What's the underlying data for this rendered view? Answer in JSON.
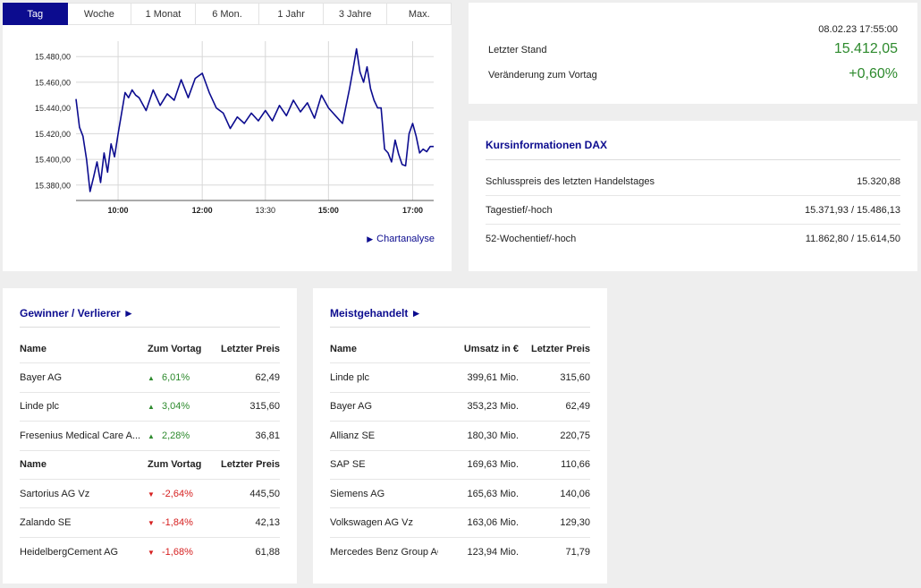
{
  "tabs": [
    "Tag",
    "Woche",
    "1 Monat",
    "6 Mon.",
    "1 Jahr",
    "3 Jahre",
    "Max."
  ],
  "active_tab": 0,
  "chart_link": "Chartanalyse",
  "chart_data": {
    "type": "line",
    "title": "",
    "xlabel": "",
    "ylabel": "",
    "x_ticks": [
      "10:00",
      "12:00",
      "13:30",
      "15:00",
      "17:00"
    ],
    "y_ticks": [
      "15.380,00",
      "15.400,00",
      "15.420,00",
      "15.440,00",
      "15.460,00",
      "15.480,00"
    ],
    "ylim": [
      15368,
      15492
    ],
    "xlim": [
      "09:00",
      "17:30"
    ],
    "line_color": "#0c0c8f",
    "grid": true,
    "series": [
      {
        "name": "",
        "x": [
          "09:00",
          "09:05",
          "09:10",
          "09:15",
          "09:20",
          "09:25",
          "09:30",
          "09:35",
          "09:40",
          "09:45",
          "09:50",
          "09:55",
          "10:00",
          "10:05",
          "10:10",
          "10:15",
          "10:20",
          "10:25",
          "10:30",
          "10:40",
          "10:50",
          "11:00",
          "11:10",
          "11:20",
          "11:30",
          "11:40",
          "11:50",
          "12:00",
          "12:10",
          "12:20",
          "12:30",
          "12:40",
          "12:50",
          "13:00",
          "13:10",
          "13:20",
          "13:30",
          "13:40",
          "13:50",
          "14:00",
          "14:10",
          "14:20",
          "14:30",
          "14:40",
          "14:50",
          "15:00",
          "15:10",
          "15:20",
          "15:30",
          "15:35",
          "15:40",
          "15:45",
          "15:50",
          "15:55",
          "16:00",
          "16:05",
          "16:10",
          "16:15",
          "16:20",
          "16:25",
          "16:30",
          "16:35",
          "16:40",
          "16:45",
          "16:50",
          "16:55",
          "17:00",
          "17:05",
          "17:10",
          "17:15",
          "17:20",
          "17:25",
          "17:30"
        ],
        "y": [
          15447,
          15425,
          15418,
          15400,
          15375,
          15386,
          15398,
          15382,
          15405,
          15390,
          15412,
          15402,
          15420,
          15436,
          15452,
          15448,
          15454,
          15450,
          15448,
          15438,
          15454,
          15442,
          15451,
          15446,
          15462,
          15448,
          15463,
          15467,
          15452,
          15440,
          15436,
          15424,
          15433,
          15428,
          15436,
          15430,
          15438,
          15430,
          15442,
          15434,
          15446,
          15437,
          15444,
          15432,
          15450,
          15440,
          15434,
          15428,
          15455,
          15470,
          15486,
          15468,
          15460,
          15472,
          15455,
          15446,
          15440,
          15440,
          15408,
          15405,
          15398,
          15415,
          15404,
          15396,
          15395,
          15420,
          15428,
          15418,
          15405,
          15408,
          15406,
          15410,
          15410
        ]
      }
    ]
  },
  "stand": {
    "date": "08.02.23 17:55:00",
    "last_label": "Letzter Stand",
    "last_value": "15.412,05",
    "change_label": "Veränderung zum Vortag",
    "change_value": "+0,60%",
    "positive_color": "#2d8a2d"
  },
  "kurs": {
    "title": "Kursinformationen DAX",
    "rows": [
      {
        "label": "Schlusspreis des letzten Handelstages",
        "value": "15.320,88"
      },
      {
        "label": "Tagestief/-hoch",
        "value": "15.371,93 / 15.486,13"
      },
      {
        "label": "52-Wochentief/-hoch",
        "value": "11.862,80 / 15.614,50"
      }
    ]
  },
  "gewinner": {
    "title": "Gewinner / Verlierer ►",
    "head": {
      "name": "Name",
      "chg": "Zum Vortag",
      "price": "Letzter Preis"
    },
    "winners": [
      {
        "name": "Bayer AG",
        "chg": "6,01%",
        "price": "62,49"
      },
      {
        "name": "Linde plc",
        "chg": "3,04%",
        "price": "315,60"
      },
      {
        "name": "Fresenius Medical Care A...",
        "chg": "2,28%",
        "price": "36,81"
      }
    ],
    "losers": [
      {
        "name": "Sartorius AG Vz",
        "chg": "-2,64%",
        "price": "445,50"
      },
      {
        "name": "Zalando SE",
        "chg": "-1,84%",
        "price": "42,13"
      },
      {
        "name": "HeidelbergCement AG",
        "chg": "-1,68%",
        "price": "61,88"
      }
    ],
    "up_arrow": "▲",
    "down_arrow": "▼",
    "up_color": "#2d8a2d",
    "down_color": "#d62020"
  },
  "meist": {
    "title": "Meistgehandelt ►",
    "head": {
      "name": "Name",
      "ums": "Umsatz in €",
      "price": "Letzter Preis"
    },
    "rows": [
      {
        "name": "Linde plc",
        "ums": "399,61 Mio.",
        "price": "315,60"
      },
      {
        "name": "Bayer AG",
        "ums": "353,23 Mio.",
        "price": "62,49"
      },
      {
        "name": "Allianz SE",
        "ums": "180,30 Mio.",
        "price": "220,75"
      },
      {
        "name": "SAP SE",
        "ums": "169,63 Mio.",
        "price": "110,66"
      },
      {
        "name": "Siemens AG",
        "ums": "165,63 Mio.",
        "price": "140,06"
      },
      {
        "name": "Volkswagen AG Vz",
        "ums": "163,06 Mio.",
        "price": "129,30"
      },
      {
        "name": "Mercedes Benz Group AG...",
        "ums": "123,94 Mio.",
        "price": "71,79"
      }
    ]
  }
}
